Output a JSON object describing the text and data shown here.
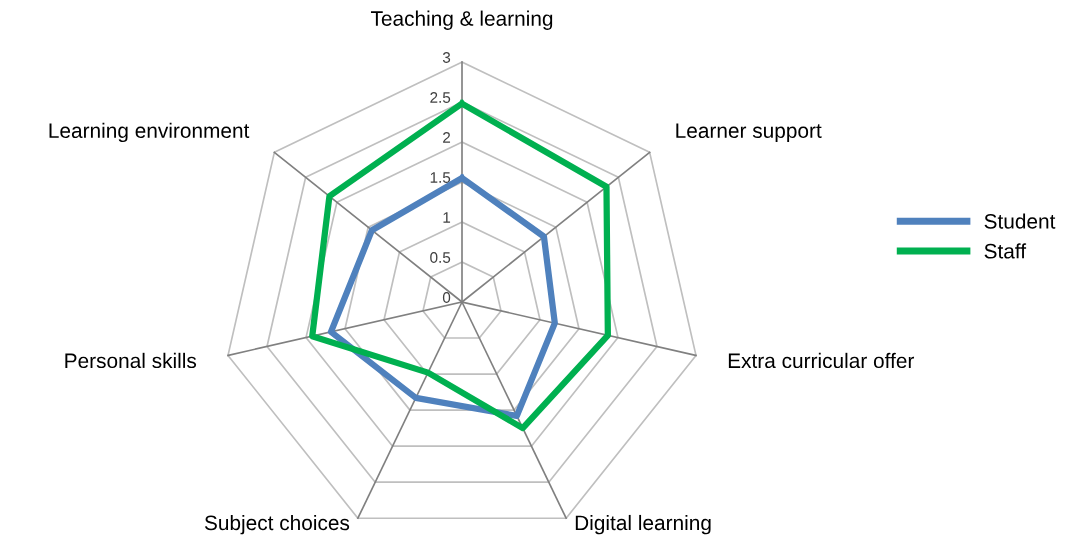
{
  "chart_data": {
    "type": "radar",
    "categories": [
      "Teaching & learning",
      "Learner support",
      "Extra curricular offer",
      "Digital learning",
      "Subject choices",
      "Personal skills",
      "Learning environment"
    ],
    "series": [
      {
        "name": "Student",
        "color": "#4f81bd",
        "values": [
          1.55,
          1.31,
          1.19,
          1.58,
          1.33,
          1.68,
          1.44
        ]
      },
      {
        "name": "Staff",
        "color": "#00b050",
        "values": [
          2.48,
          2.31,
          1.87,
          1.75,
          0.98,
          1.92,
          2.12
        ]
      }
    ],
    "ylim": [
      0,
      3
    ],
    "yticks": [
      0,
      0.5,
      1,
      1.5,
      2,
      2.5,
      3
    ],
    "grid": true,
    "legend": "right",
    "marker": "none"
  }
}
